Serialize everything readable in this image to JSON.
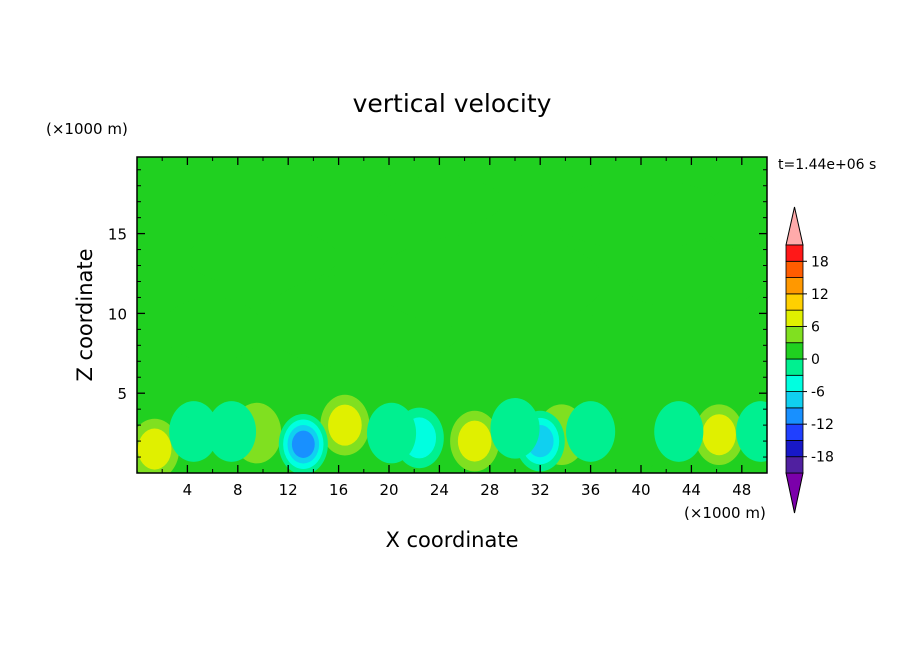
{
  "chart_data": {
    "type": "heatmap",
    "title": "vertical velocity",
    "xlabel": "X coordinate",
    "ylabel": "Z coordinate",
    "x_unit": "(×1000 m)",
    "y_unit": "(×1000 m)",
    "time_label": "t=1.44e+06 s",
    "xlim": [
      0,
      50
    ],
    "ylim": [
      0,
      19.8
    ],
    "x_ticks": [
      4,
      8,
      12,
      16,
      20,
      24,
      28,
      32,
      36,
      40,
      44,
      48
    ],
    "y_ticks": [
      5,
      10,
      15
    ],
    "colorbar": {
      "levels": [
        -21,
        -18,
        -15,
        -12,
        -9,
        -6,
        -3,
        0,
        3,
        6,
        9,
        12,
        15,
        18,
        21
      ],
      "tick_labels": [
        "18",
        "12",
        "6",
        "0",
        "-6",
        "-12",
        "-18"
      ],
      "tick_values": [
        18,
        12,
        6,
        0,
        -6,
        -12,
        -18
      ],
      "colors": [
        "#7b00aa",
        "#5020a0",
        "#1818c8",
        "#2040ff",
        "#1890ff",
        "#10d0f0",
        "#00ffe0",
        "#00f090",
        "#20d020",
        "#80e020",
        "#e0f000",
        "#ffd000",
        "#ff9800",
        "#ff5c00",
        "#ff1818",
        "#ffaaaa"
      ]
    },
    "background_value": 0,
    "features": [
      {
        "kind": "updraft",
        "x": 1.4,
        "z": 1.5,
        "peak": 7
      },
      {
        "kind": "updraft",
        "x": 16.5,
        "z": 3.0,
        "peak": 8
      },
      {
        "kind": "updraft",
        "x": 26.8,
        "z": 2.0,
        "peak": 8
      },
      {
        "kind": "updraft",
        "x": 46.2,
        "z": 2.4,
        "peak": 8
      },
      {
        "kind": "updraft",
        "x": 9.5,
        "z": 2.5,
        "peak": 3
      },
      {
        "kind": "updraft",
        "x": 33.7,
        "z": 2.4,
        "peak": 3
      },
      {
        "kind": "updraft",
        "x": 39.5,
        "z": 1.8,
        "peak": 2
      },
      {
        "kind": "downdraft",
        "x": 13.2,
        "z": 1.8,
        "peak": -12
      },
      {
        "kind": "downdraft",
        "x": 32.0,
        "z": 2.0,
        "peak": -11
      },
      {
        "kind": "downdraft",
        "x": 22.4,
        "z": 2.2,
        "peak": -8
      },
      {
        "kind": "downdraft",
        "x": 20.2,
        "z": 2.5,
        "peak": -5
      },
      {
        "kind": "downdraft",
        "x": 7.5,
        "z": 2.6,
        "peak": -4
      },
      {
        "kind": "downdraft",
        "x": 30.0,
        "z": 2.8,
        "peak": -4
      },
      {
        "kind": "downdraft",
        "x": 36.0,
        "z": 2.6,
        "peak": -4
      },
      {
        "kind": "downdraft",
        "x": 43.0,
        "z": 2.6,
        "peak": -4
      },
      {
        "kind": "downdraft",
        "x": 49.5,
        "z": 2.6,
        "peak": -4
      },
      {
        "kind": "downdraft",
        "x": 4.5,
        "z": 2.6,
        "peak": -3
      }
    ]
  }
}
